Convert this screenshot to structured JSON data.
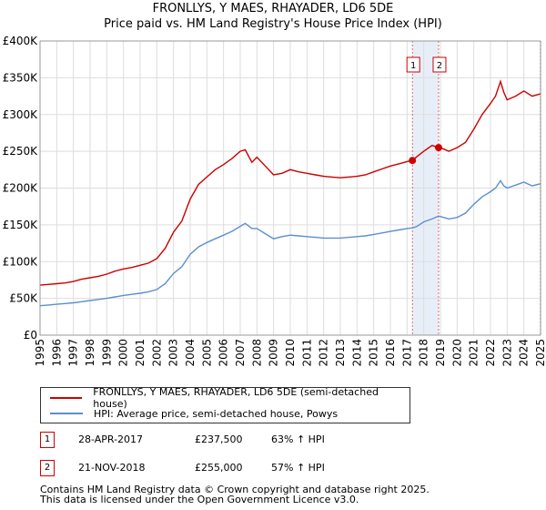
{
  "chart_data": {
    "type": "line",
    "title": "FRONLLYS, Y MAES, RHAYADER, LD6 5DE",
    "subtitle": "Price paid vs. HM Land Registry's House Price Index (HPI)",
    "xlabel": "",
    "ylabel": "",
    "xlim": [
      1995,
      2025
    ],
    "ylim": [
      0,
      400000
    ],
    "x_ticks": [
      "1995",
      "1996",
      "1997",
      "1998",
      "1999",
      "2000",
      "2001",
      "2002",
      "2003",
      "2004",
      "2005",
      "2006",
      "2007",
      "2008",
      "2009",
      "2010",
      "2011",
      "2012",
      "2013",
      "2014",
      "2015",
      "2016",
      "2017",
      "2018",
      "2019",
      "2020",
      "2021",
      "2022",
      "2023",
      "2024",
      "2025"
    ],
    "y_ticks": [
      {
        "value": 0,
        "label": "£0"
      },
      {
        "value": 50000,
        "label": "£50K"
      },
      {
        "value": 100000,
        "label": "£100K"
      },
      {
        "value": 150000,
        "label": "£150K"
      },
      {
        "value": 200000,
        "label": "£200K"
      },
      {
        "value": 250000,
        "label": "£250K"
      },
      {
        "value": 300000,
        "label": "£300K"
      },
      {
        "value": 350000,
        "label": "£350K"
      },
      {
        "value": 400000,
        "label": "£400K"
      }
    ],
    "grid": true,
    "series": [
      {
        "name": "FRONLLYS, Y MAES, RHAYADER, LD6 5DE (semi-detached house)",
        "color": "#cc0000",
        "points": [
          [
            1995.0,
            68000
          ],
          [
            1995.5,
            69000
          ],
          [
            1996.0,
            70000
          ],
          [
            1996.5,
            71000
          ],
          [
            1997.0,
            73000
          ],
          [
            1997.5,
            76000
          ],
          [
            1998.0,
            78000
          ],
          [
            1998.5,
            80000
          ],
          [
            1999.0,
            83000
          ],
          [
            1999.5,
            87000
          ],
          [
            2000.0,
            90000
          ],
          [
            2000.5,
            92000
          ],
          [
            2001.0,
            95000
          ],
          [
            2001.5,
            98000
          ],
          [
            2002.0,
            104000
          ],
          [
            2002.5,
            118000
          ],
          [
            2003.0,
            140000
          ],
          [
            2003.5,
            155000
          ],
          [
            2004.0,
            185000
          ],
          [
            2004.5,
            205000
          ],
          [
            2005.0,
            215000
          ],
          [
            2005.5,
            225000
          ],
          [
            2006.0,
            232000
          ],
          [
            2006.5,
            240000
          ],
          [
            2007.0,
            250000
          ],
          [
            2007.3,
            252000
          ],
          [
            2007.7,
            235000
          ],
          [
            2008.0,
            242000
          ],
          [
            2008.5,
            230000
          ],
          [
            2009.0,
            218000
          ],
          [
            2009.5,
            220000
          ],
          [
            2010.0,
            225000
          ],
          [
            2010.5,
            222000
          ],
          [
            2011.0,
            220000
          ],
          [
            2011.5,
            218000
          ],
          [
            2012.0,
            216000
          ],
          [
            2012.5,
            215000
          ],
          [
            2013.0,
            214000
          ],
          [
            2013.5,
            215000
          ],
          [
            2014.0,
            216000
          ],
          [
            2014.5,
            218000
          ],
          [
            2015.0,
            222000
          ],
          [
            2015.5,
            226000
          ],
          [
            2016.0,
            230000
          ],
          [
            2016.5,
            233000
          ],
          [
            2017.0,
            236000
          ],
          [
            2017.32,
            237500
          ],
          [
            2017.6,
            243000
          ],
          [
            2018.0,
            250000
          ],
          [
            2018.5,
            258000
          ],
          [
            2018.89,
            255000
          ],
          [
            2019.2,
            253000
          ],
          [
            2019.5,
            250000
          ],
          [
            2020.0,
            255000
          ],
          [
            2020.5,
            262000
          ],
          [
            2021.0,
            280000
          ],
          [
            2021.5,
            300000
          ],
          [
            2022.0,
            315000
          ],
          [
            2022.3,
            325000
          ],
          [
            2022.6,
            345000
          ],
          [
            2022.8,
            330000
          ],
          [
            2023.0,
            320000
          ],
          [
            2023.5,
            325000
          ],
          [
            2024.0,
            332000
          ],
          [
            2024.5,
            325000
          ],
          [
            2025.0,
            328000
          ]
        ]
      },
      {
        "name": "HPI: Average price, semi-detached house, Powys",
        "color": "#5b8fd0",
        "points": [
          [
            1995.0,
            40000
          ],
          [
            1995.5,
            41000
          ],
          [
            1996.0,
            42000
          ],
          [
            1996.5,
            43000
          ],
          [
            1997.0,
            44000
          ],
          [
            1997.5,
            45500
          ],
          [
            1998.0,
            47000
          ],
          [
            1998.5,
            48500
          ],
          [
            1999.0,
            50000
          ],
          [
            1999.5,
            52000
          ],
          [
            2000.0,
            54000
          ],
          [
            2000.5,
            55500
          ],
          [
            2001.0,
            57000
          ],
          [
            2001.5,
            59000
          ],
          [
            2002.0,
            62000
          ],
          [
            2002.5,
            70000
          ],
          [
            2003.0,
            84000
          ],
          [
            2003.5,
            93000
          ],
          [
            2004.0,
            110000
          ],
          [
            2004.5,
            120000
          ],
          [
            2005.0,
            126000
          ],
          [
            2005.5,
            131000
          ],
          [
            2006.0,
            136000
          ],
          [
            2006.5,
            141000
          ],
          [
            2007.0,
            148000
          ],
          [
            2007.3,
            152000
          ],
          [
            2007.7,
            145000
          ],
          [
            2008.0,
            145000
          ],
          [
            2008.5,
            138000
          ],
          [
            2009.0,
            131000
          ],
          [
            2009.5,
            134000
          ],
          [
            2010.0,
            136000
          ],
          [
            2010.5,
            135000
          ],
          [
            2011.0,
            134000
          ],
          [
            2011.5,
            133000
          ],
          [
            2012.0,
            132000
          ],
          [
            2012.5,
            132000
          ],
          [
            2013.0,
            132000
          ],
          [
            2013.5,
            133000
          ],
          [
            2014.0,
            134000
          ],
          [
            2014.5,
            135000
          ],
          [
            2015.0,
            137000
          ],
          [
            2015.5,
            139000
          ],
          [
            2016.0,
            141000
          ],
          [
            2016.5,
            143000
          ],
          [
            2017.0,
            145000
          ],
          [
            2017.32,
            145700
          ],
          [
            2017.6,
            148000
          ],
          [
            2018.0,
            154000
          ],
          [
            2018.5,
            158000
          ],
          [
            2018.89,
            162000
          ],
          [
            2019.2,
            160000
          ],
          [
            2019.5,
            158000
          ],
          [
            2020.0,
            160000
          ],
          [
            2020.5,
            166000
          ],
          [
            2021.0,
            178000
          ],
          [
            2021.5,
            188000
          ],
          [
            2022.0,
            195000
          ],
          [
            2022.3,
            200000
          ],
          [
            2022.6,
            210000
          ],
          [
            2022.8,
            203000
          ],
          [
            2023.0,
            200000
          ],
          [
            2023.5,
            204000
          ],
          [
            2024.0,
            208000
          ],
          [
            2024.5,
            203000
          ],
          [
            2025.0,
            206000
          ]
        ]
      }
    ],
    "markers": [
      {
        "id": "1",
        "x": 2017.32,
        "y": 237500,
        "color": "#cc0000"
      },
      {
        "id": "2",
        "x": 2018.89,
        "y": 255000,
        "color": "#cc0000"
      }
    ],
    "shaded_band": {
      "x0": 2017.32,
      "x1": 2018.89,
      "color": "#e8eef8"
    },
    "vlines": [
      {
        "x": 2017.32,
        "color": "#cc0000"
      },
      {
        "x": 2018.89,
        "color": "#cc0000"
      },
      {
        "x": 2025.0,
        "color": "#000000"
      }
    ]
  },
  "legend": {
    "items": [
      {
        "label": "FRONLLYS, Y MAES, RHAYADER, LD6 5DE (semi-detached house)",
        "color": "#cc0000"
      },
      {
        "label": "HPI: Average price, semi-detached house, Powys",
        "color": "#5b8fd0"
      }
    ]
  },
  "transactions": [
    {
      "badge": "1",
      "date": "28-APR-2017",
      "price": "£237,500",
      "hpi": "63% ↑ HPI"
    },
    {
      "badge": "2",
      "date": "21-NOV-2018",
      "price": "£255,000",
      "hpi": "57% ↑ HPI"
    }
  ],
  "footer": {
    "line1": "Contains HM Land Registry data © Crown copyright and database right 2025.",
    "line2": "This data is licensed under the Open Government Licence v3.0."
  }
}
